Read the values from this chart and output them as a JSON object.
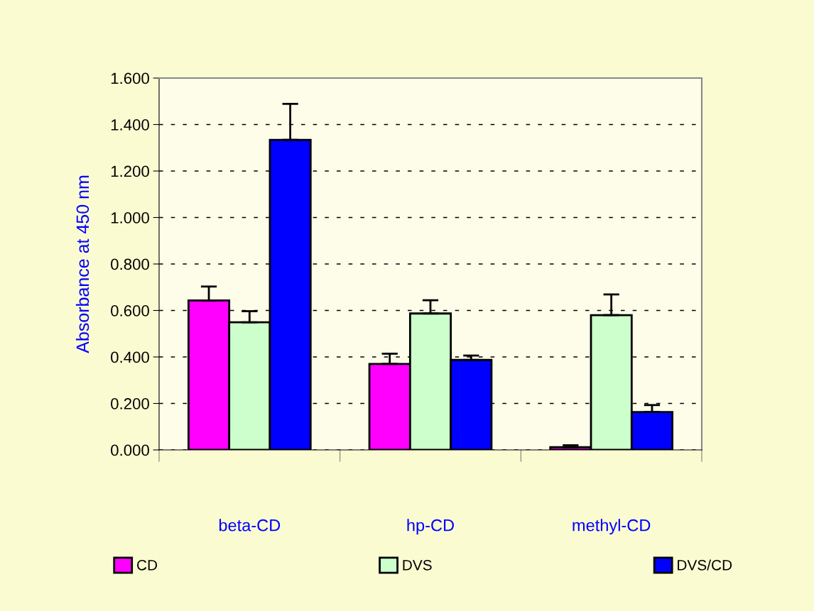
{
  "chart_data": {
    "type": "bar",
    "ylabel": "Absorbance at 450 nm",
    "categories": [
      "beta-CD",
      "hp-CD",
      "methyl-CD"
    ],
    "series": [
      {
        "name": "CD",
        "color": "#ff00ff",
        "values": [
          0.643,
          0.37,
          0.012
        ],
        "errors": [
          0.06,
          0.044,
          0.008
        ]
      },
      {
        "name": "DVS",
        "color": "#ccffcc",
        "values": [
          0.549,
          0.587,
          0.58
        ],
        "errors": [
          0.048,
          0.057,
          0.089
        ]
      },
      {
        "name": "DVS/CD",
        "color": "#0000ff",
        "values": [
          1.334,
          0.387,
          0.163
        ],
        "errors": [
          0.155,
          0.019,
          0.03
        ]
      }
    ],
    "ylim": [
      0,
      1.6
    ],
    "yticks": [
      {
        "value": 0,
        "label": "0.000"
      },
      {
        "value": 0.2,
        "label": "0.200"
      },
      {
        "value": 0.4,
        "label": "0.400"
      },
      {
        "value": 0.6,
        "label": "0.600"
      },
      {
        "value": 0.8,
        "label": "0.800"
      },
      {
        "value": 1.0,
        "label": "1.000"
      },
      {
        "value": 1.2,
        "label": "1.200"
      },
      {
        "value": 1.4,
        "label": "1.400"
      },
      {
        "value": 1.6,
        "label": "1.600"
      }
    ],
    "grid": "y",
    "legend": "bottom"
  }
}
